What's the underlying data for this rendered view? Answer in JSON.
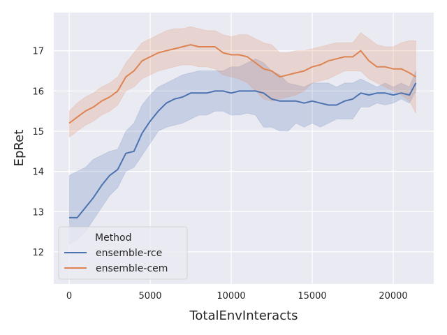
{
  "chart_data": {
    "type": "line",
    "xlabel": "TotalEnvInteracts",
    "ylabel": "EpRet",
    "xlim": [
      -950,
      22500
    ],
    "ylim": [
      11.2,
      17.95
    ],
    "xticks": [
      0,
      5000,
      10000,
      15000,
      20000
    ],
    "yticks": [
      12,
      13,
      14,
      15,
      16,
      17
    ],
    "grid": true,
    "background": "#eaeaf2",
    "legend": {
      "title": "Method",
      "placement": "lower-left"
    },
    "series": [
      {
        "name": "ensemble-rce",
        "color": "#4c72b0",
        "x": [
          0,
          500,
          1000,
          1500,
          2000,
          2500,
          3000,
          3500,
          4000,
          4500,
          5000,
          5500,
          6000,
          6500,
          7000,
          7500,
          8000,
          8500,
          9000,
          9500,
          10000,
          10500,
          11000,
          11500,
          12000,
          12500,
          13000,
          13500,
          14000,
          14500,
          15000,
          15500,
          16000,
          16500,
          17000,
          17500,
          18000,
          18500,
          19000,
          19500,
          20000,
          20500,
          21000,
          21400
        ],
        "values": [
          12.85,
          12.85,
          13.1,
          13.35,
          13.65,
          13.9,
          14.05,
          14.45,
          14.5,
          14.95,
          15.25,
          15.5,
          15.7,
          15.8,
          15.85,
          15.95,
          15.95,
          15.95,
          16.0,
          16.0,
          15.95,
          16.0,
          16.0,
          16.0,
          15.95,
          15.8,
          15.75,
          15.75,
          15.75,
          15.7,
          15.75,
          15.7,
          15.65,
          15.65,
          15.75,
          15.8,
          15.95,
          15.9,
          15.95,
          15.95,
          15.9,
          15.95,
          15.9,
          16.2
        ],
        "lower": [
          12.2,
          12.3,
          12.5,
          12.8,
          13.1,
          13.4,
          13.6,
          14.0,
          14.1,
          14.4,
          14.7,
          15.0,
          15.1,
          15.15,
          15.2,
          15.3,
          15.4,
          15.4,
          15.5,
          15.5,
          15.4,
          15.4,
          15.45,
          15.4,
          15.1,
          15.1,
          15.0,
          15.0,
          15.2,
          15.1,
          15.2,
          15.1,
          15.2,
          15.3,
          15.3,
          15.3,
          15.6,
          15.6,
          15.7,
          15.65,
          15.7,
          15.8,
          15.7,
          16.0
        ],
        "upper": [
          13.9,
          14.0,
          14.1,
          14.3,
          14.4,
          14.5,
          14.55,
          15.0,
          15.2,
          15.65,
          15.9,
          16.1,
          16.2,
          16.3,
          16.4,
          16.45,
          16.5,
          16.5,
          16.5,
          16.5,
          16.6,
          16.6,
          16.7,
          16.8,
          16.7,
          16.5,
          16.4,
          16.2,
          16.15,
          16.1,
          16.2,
          16.2,
          16.2,
          16.1,
          16.2,
          16.2,
          16.3,
          16.2,
          16.1,
          16.2,
          16.1,
          16.2,
          16.1,
          16.5
        ]
      },
      {
        "name": "ensemble-cem",
        "color": "#dd8452",
        "x": [
          0,
          500,
          1000,
          1500,
          2000,
          2500,
          3000,
          3500,
          4000,
          4500,
          5000,
          5500,
          6000,
          6500,
          7000,
          7500,
          8000,
          8500,
          9000,
          9500,
          10000,
          10500,
          11000,
          11500,
          12000,
          12500,
          13000,
          13500,
          14000,
          14500,
          15000,
          15500,
          16000,
          16500,
          17000,
          17500,
          18000,
          18500,
          19000,
          19500,
          20000,
          20500,
          21000,
          21400
        ],
        "values": [
          15.2,
          15.35,
          15.5,
          15.6,
          15.75,
          15.85,
          16.0,
          16.35,
          16.5,
          16.75,
          16.85,
          16.95,
          17.0,
          17.05,
          17.1,
          17.15,
          17.1,
          17.1,
          17.1,
          16.95,
          16.9,
          16.9,
          16.85,
          16.7,
          16.55,
          16.5,
          16.35,
          16.4,
          16.45,
          16.5,
          16.6,
          16.65,
          16.75,
          16.8,
          16.85,
          16.85,
          17.0,
          16.75,
          16.6,
          16.6,
          16.55,
          16.55,
          16.45,
          16.35
        ],
        "lower": [
          14.85,
          15.0,
          15.15,
          15.25,
          15.4,
          15.5,
          15.65,
          16.0,
          16.1,
          16.3,
          16.4,
          16.5,
          16.55,
          16.6,
          16.65,
          16.65,
          16.6,
          16.6,
          16.55,
          16.4,
          16.35,
          16.3,
          16.2,
          16.0,
          15.8,
          15.75,
          15.8,
          15.85,
          15.9,
          16.0,
          16.2,
          16.25,
          16.3,
          16.4,
          16.5,
          16.5,
          16.5,
          16.3,
          16.2,
          16.1,
          16.0,
          15.9,
          15.75,
          15.45
        ],
        "upper": [
          15.5,
          15.7,
          15.85,
          15.95,
          16.1,
          16.2,
          16.35,
          16.7,
          16.95,
          17.2,
          17.3,
          17.4,
          17.5,
          17.55,
          17.55,
          17.6,
          17.55,
          17.5,
          17.5,
          17.4,
          17.35,
          17.4,
          17.4,
          17.3,
          17.2,
          17.15,
          16.95,
          16.95,
          17.0,
          17.0,
          17.05,
          17.1,
          17.15,
          17.2,
          17.2,
          17.2,
          17.45,
          17.3,
          17.15,
          17.1,
          17.1,
          17.2,
          17.25,
          17.25
        ]
      }
    ]
  }
}
